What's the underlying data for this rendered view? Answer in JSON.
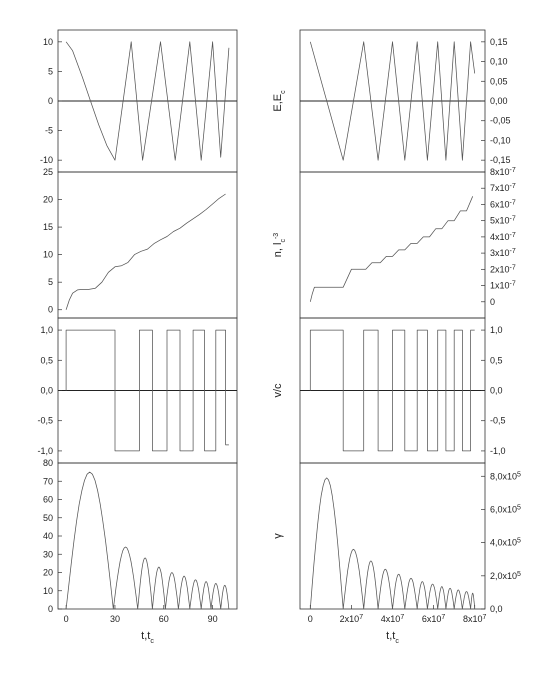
{
  "chart_data": [
    {
      "type": "line",
      "panel": "left-1",
      "title": "",
      "xlabel": "",
      "ylabel": "",
      "xlim": [
        -5,
        105
      ],
      "ylim": [
        -12,
        12
      ],
      "yticks": [
        10,
        5,
        0,
        -5,
        -10
      ],
      "ytick_labels": [
        "10",
        "5",
        "0",
        "-5",
        "-10"
      ],
      "zero_line": true,
      "series": [
        {
          "x": [
            0,
            4,
            10,
            15,
            20,
            25,
            30,
            40,
            47,
            58,
            67,
            76,
            83,
            90,
            95,
            100
          ],
          "y": [
            10,
            8.5,
            4,
            0,
            -4,
            -7.5,
            -10,
            10,
            -10,
            10,
            -10,
            10,
            -10,
            10,
            -9.5,
            9
          ]
        }
      ]
    },
    {
      "type": "line",
      "panel": "left-2",
      "xlabel": "",
      "ylabel": "",
      "xlim": [
        -5,
        105
      ],
      "ylim": [
        -1.5,
        25
      ],
      "yticks": [
        0,
        5,
        10,
        15,
        20,
        25
      ],
      "ytick_labels": [
        "0",
        "5",
        "10",
        "15",
        "20",
        "25"
      ],
      "series": [
        {
          "x": [
            0,
            2,
            4,
            7,
            10,
            14,
            18,
            22,
            26,
            30,
            34,
            38,
            42,
            46,
            50,
            54,
            58,
            62,
            66,
            70,
            74,
            78,
            82,
            86,
            90,
            94,
            98
          ],
          "y": [
            0,
            1.8,
            3,
            3.6,
            3.7,
            3.7,
            3.9,
            5,
            6.8,
            7.8,
            8,
            8.6,
            10,
            10.6,
            11,
            12,
            12.7,
            13.3,
            14.2,
            14.8,
            15.7,
            16.5,
            17.3,
            18.2,
            19.2,
            20.2,
            21
          ]
        }
      ]
    },
    {
      "type": "line",
      "panel": "left-3",
      "xlabel": "",
      "ylabel": "",
      "xlim": [
        -5,
        105
      ],
      "ylim": [
        -1.2,
        1.2
      ],
      "yticks": [
        1.0,
        0.5,
        0.0,
        -0.5,
        -1.0
      ],
      "ytick_labels": [
        "1,0",
        "0,5",
        "0,0",
        "-0,5",
        "-1,0"
      ],
      "zero_line": true,
      "segments": [
        {
          "from": 0,
          "to": 30,
          "value": 1
        },
        {
          "from": 30,
          "to": 45,
          "value": -1
        },
        {
          "from": 45,
          "to": 53,
          "value": 1
        },
        {
          "from": 53,
          "to": 62,
          "value": -1
        },
        {
          "from": 62,
          "to": 70,
          "value": 1
        },
        {
          "from": 70,
          "to": 78,
          "value": -1
        },
        {
          "from": 78,
          "to": 85,
          "value": 1
        },
        {
          "from": 85,
          "to": 92,
          "value": -1
        },
        {
          "from": 92,
          "to": 98,
          "value": 1
        },
        {
          "from": 98,
          "to": 100,
          "value": -0.9
        }
      ]
    },
    {
      "type": "line",
      "panel": "left-4",
      "xlabel": "t,t",
      "xlabel_sub": "c",
      "ylabel": "",
      "xlim": [
        -5,
        105
      ],
      "ylim": [
        0,
        80
      ],
      "xticks": [
        0,
        30,
        60,
        90
      ],
      "xtick_labels": [
        "0",
        "30",
        "60",
        "90"
      ],
      "yticks": [
        0,
        10,
        20,
        30,
        40,
        50,
        60,
        70,
        80
      ],
      "ytick_labels": [
        "0",
        "10",
        "20",
        "30",
        "40",
        "50",
        "60",
        "70",
        "80"
      ],
      "series": [
        {
          "arches": [
            {
              "from": 0,
              "to": 29,
              "peak": 75
            },
            {
              "from": 29,
              "to": 44,
              "peak": 34
            },
            {
              "from": 44,
              "to": 53,
              "peak": 28
            },
            {
              "from": 53,
              "to": 61,
              "peak": 23
            },
            {
              "from": 61,
              "to": 69,
              "peak": 20
            },
            {
              "from": 69,
              "to": 76,
              "peak": 18
            },
            {
              "from": 76,
              "to": 83,
              "peak": 16
            },
            {
              "from": 83,
              "to": 89,
              "peak": 15
            },
            {
              "from": 89,
              "to": 95,
              "peak": 14
            },
            {
              "from": 95,
              "to": 100,
              "peak": 13
            }
          ]
        }
      ]
    },
    {
      "type": "line",
      "panel": "right-1",
      "xlabel": "",
      "ylabel": "E,E",
      "ylabel_sub": "c",
      "xlim": [
        -0.5,
        8.5
      ],
      "ylim": [
        -0.18,
        0.18
      ],
      "yticks": [
        0.15,
        0.1,
        0.05,
        0.0,
        -0.05,
        -0.1,
        -0.15
      ],
      "ytick_labels": [
        "0,15",
        "0,10",
        "0,05",
        "0,00",
        "-0,05",
        "-0,10",
        "-0,15"
      ],
      "zero_line": true,
      "series": [
        {
          "x": [
            0,
            1.6,
            2.6,
            3.3,
            4.0,
            4.6,
            5.2,
            5.7,
            6.2,
            6.6,
            7.0,
            7.4,
            7.8,
            8.0
          ],
          "y": [
            0.15,
            -0.15,
            0.15,
            -0.15,
            0.15,
            -0.15,
            0.15,
            -0.15,
            0.15,
            -0.15,
            0.15,
            -0.15,
            0.15,
            0.07
          ]
        }
      ]
    },
    {
      "type": "line",
      "panel": "right-2",
      "xlabel": "",
      "ylabel": "n, l",
      "ylabel_sub": "c",
      "ylabel_sup": "-3",
      "xlim": [
        -0.5,
        8.5
      ],
      "ylim": [
        -1.0,
        8.0
      ],
      "ytick_values": [
        0,
        1,
        2,
        3,
        4,
        5,
        6,
        7,
        8
      ],
      "ytick_mantissas": [
        "0",
        "1x10",
        "2x10",
        "3x10",
        "4x10",
        "5x10",
        "6x10",
        "7x10",
        "8x10"
      ],
      "ytick_exponents": [
        "",
        "-7",
        "-7",
        "-7",
        "-7",
        "-7",
        "-7",
        "-7",
        "-7"
      ],
      "series": [
        {
          "x": [
            0.0,
            0.1,
            0.2,
            1.6,
            2.0,
            2.7,
            3.0,
            3.4,
            3.7,
            4.0,
            4.3,
            4.6,
            4.9,
            5.2,
            5.5,
            5.8,
            6.1,
            6.4,
            6.7,
            7.0,
            7.3,
            7.6,
            7.9
          ],
          "y": [
            0.0,
            0.5,
            0.9,
            0.9,
            2.0,
            2.0,
            2.4,
            2.4,
            2.8,
            2.8,
            3.2,
            3.2,
            3.6,
            3.6,
            4.0,
            4.0,
            4.5,
            4.5,
            5.0,
            5.0,
            5.6,
            5.6,
            6.5
          ]
        }
      ]
    },
    {
      "type": "line",
      "panel": "right-3",
      "xlabel": "",
      "ylabel": "v/c",
      "xlim": [
        -0.5,
        8.5
      ],
      "ylim": [
        -1.2,
        1.2
      ],
      "yticks": [
        1.0,
        0.5,
        0.0,
        -0.5,
        -1.0
      ],
      "ytick_labels": [
        "1,0",
        "0,5",
        "0,0",
        "-0,5",
        "-1,0"
      ],
      "zero_line": true,
      "segments": [
        {
          "from": 0.0,
          "to": 1.6,
          "value": 1
        },
        {
          "from": 1.6,
          "to": 2.6,
          "value": -1
        },
        {
          "from": 2.6,
          "to": 3.3,
          "value": 1
        },
        {
          "from": 3.3,
          "to": 4.0,
          "value": -1
        },
        {
          "from": 4.0,
          "to": 4.6,
          "value": 1
        },
        {
          "from": 4.6,
          "to": 5.2,
          "value": -1
        },
        {
          "from": 5.2,
          "to": 5.7,
          "value": 1
        },
        {
          "from": 5.7,
          "to": 6.2,
          "value": -1
        },
        {
          "from": 6.2,
          "to": 6.6,
          "value": 1
        },
        {
          "from": 6.6,
          "to": 7.0,
          "value": -1
        },
        {
          "from": 7.0,
          "to": 7.4,
          "value": 1
        },
        {
          "from": 7.4,
          "to": 7.8,
          "value": -1
        },
        {
          "from": 7.8,
          "to": 8.0,
          "value": 1
        }
      ]
    },
    {
      "type": "line",
      "panel": "right-4",
      "xlabel": "t,t",
      "xlabel_sub": "c",
      "ylabel": "γ",
      "xlim": [
        -0.5,
        8.5
      ],
      "ylim": [
        0,
        8.8
      ],
      "xtick_values": [
        0,
        2,
        4,
        6,
        8
      ],
      "xtick_mantissas": [
        "0",
        "2x10",
        "4x10",
        "6x10",
        "8x10"
      ],
      "xtick_exponents": [
        "",
        "7",
        "7",
        "7",
        "7"
      ],
      "ytick_values": [
        0,
        2,
        4,
        6,
        8
      ],
      "ytick_mantissas": [
        "0,0",
        "2,0x10",
        "4,0x10",
        "6,0x10",
        "8,0x10"
      ],
      "ytick_exponents": [
        "",
        "5",
        "5",
        "5",
        "5"
      ],
      "series": [
        {
          "arches": [
            {
              "from": 0.0,
              "to": 1.6,
              "peak": 7.9
            },
            {
              "from": 1.6,
              "to": 2.6,
              "peak": 3.6
            },
            {
              "from": 2.6,
              "to": 3.3,
              "peak": 2.9
            },
            {
              "from": 3.3,
              "to": 4.0,
              "peak": 2.4
            },
            {
              "from": 4.0,
              "to": 4.6,
              "peak": 2.1
            },
            {
              "from": 4.6,
              "to": 5.2,
              "peak": 1.85
            },
            {
              "from": 5.2,
              "to": 5.7,
              "peak": 1.65
            },
            {
              "from": 5.7,
              "to": 6.2,
              "peak": 1.5
            },
            {
              "from": 6.2,
              "to": 6.6,
              "peak": 1.35
            },
            {
              "from": 6.6,
              "to": 7.0,
              "peak": 1.25
            },
            {
              "from": 7.0,
              "to": 7.4,
              "peak": 1.15
            },
            {
              "from": 7.4,
              "to": 7.8,
              "peak": 1.05
            },
            {
              "from": 7.8,
              "to": 8.0,
              "peak": 0.95
            }
          ]
        }
      ]
    }
  ]
}
